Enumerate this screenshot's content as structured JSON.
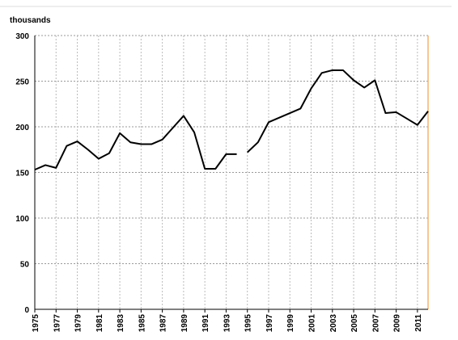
{
  "chart_data": {
    "type": "line",
    "y_label": "thousands",
    "xlim": [
      1975,
      2012
    ],
    "xticks": [
      1975,
      1977,
      1979,
      1981,
      1983,
      1985,
      1987,
      1989,
      1991,
      1993,
      1995,
      1997,
      1999,
      2001,
      2003,
      2005,
      2007,
      2009,
      2011
    ],
    "ylim": [
      0,
      300
    ],
    "yticks": [
      0,
      50,
      100,
      150,
      200,
      250,
      300
    ],
    "grid": true,
    "series": [
      {
        "color": "#000000",
        "x": [
          1975,
          1976,
          1977,
          1978,
          1979,
          1980,
          1981,
          1982,
          1983,
          1984,
          1985,
          1986,
          1987,
          1988,
          1989,
          1990,
          1991,
          1992,
          1993,
          1994
        ],
        "values": [
          153,
          158,
          155,
          179,
          184,
          175,
          165,
          171,
          193,
          183,
          181,
          181,
          186,
          199,
          212,
          194,
          154,
          154,
          170,
          170
        ]
      },
      {
        "color": "#000000",
        "x": [
          1995,
          1996,
          1997,
          1998,
          1999,
          2000,
          2001,
          2002,
          2003,
          2004,
          2005,
          2006,
          2007,
          2008,
          2009,
          2010,
          2011,
          2012
        ],
        "values": [
          172,
          183,
          205,
          210,
          215,
          220,
          242,
          259,
          262,
          262,
          251,
          243,
          251,
          215,
          216,
          209,
          202,
          217
        ]
      }
    ]
  }
}
